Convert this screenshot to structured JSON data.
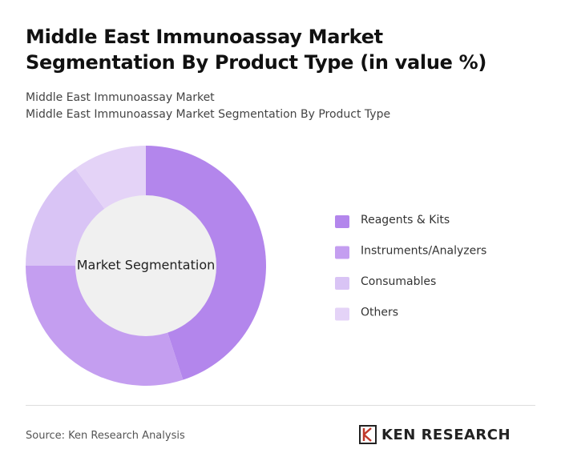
{
  "chart_data": {
    "type": "donut",
    "title": "Middle East Immunoassay Market Segmentation By Product Type (in value %)",
    "subtitle": [
      "Middle East Immunoassay Market",
      "Middle East Immunoassay Market Segmentation By Product Type"
    ],
    "center_label": "Market Segmentation",
    "categories": [
      "Reagents & Kits",
      "Instruments/Analyzers",
      "Consumables",
      "Others"
    ],
    "values": [
      45,
      30,
      15,
      10
    ],
    "colors": [
      "#b386ec",
      "#c49ef0",
      "#d9c4f5",
      "#e4d3f7"
    ],
    "source": "Source: Ken Research Analysis",
    "logo": "KEN RESEARCH"
  }
}
